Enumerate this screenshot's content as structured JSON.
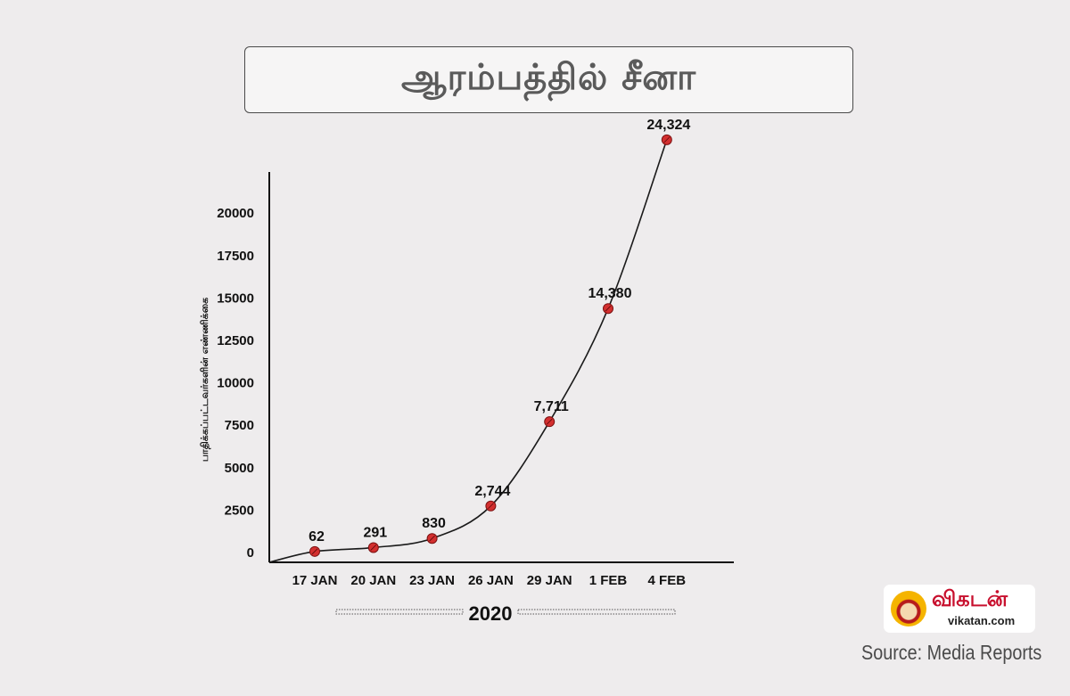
{
  "title": "ஆரம்பத்தில் சீனா",
  "chart_data": {
    "type": "line",
    "ylabel": "பாதிக்கப்பட்டவர்களின் எண்ணிக்கை",
    "xlabel": "2020",
    "categories": [
      "17 JAN",
      "20 JAN",
      "23 JAN",
      "26 JAN",
      "29 JAN",
      "1 FEB",
      "4 FEB"
    ],
    "values": [
      62,
      291,
      830,
      2744,
      7711,
      14380,
      24324
    ],
    "data_labels": [
      "62",
      "291",
      "830",
      "2,744",
      "7,711",
      "14,380",
      "24,324"
    ],
    "yticks": [
      0,
      2500,
      5000,
      7500,
      10000,
      12500,
      15000,
      17500,
      20000
    ],
    "ylim": [
      0,
      22000
    ],
    "grid": false,
    "line_color": "#1a1a1a",
    "marker_color": "#d32f2f"
  },
  "logo": {
    "brand": "விகடன்",
    "url": "vikatan.com"
  },
  "source": "Source: Media Reports"
}
